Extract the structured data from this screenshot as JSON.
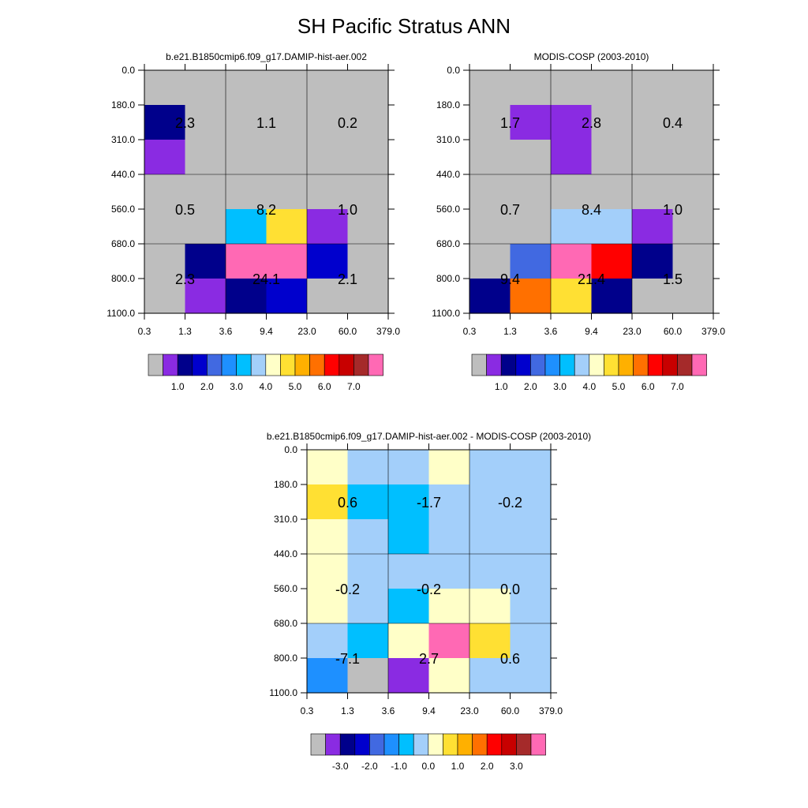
{
  "title": "SH Pacific Stratus ANN",
  "palette": [
    "#bebebe",
    "#8a2be2",
    "#00008b",
    "#0000cd",
    "#4169e1",
    "#1e90ff",
    "#00bfff",
    "#a3cffa",
    "#ffffc8",
    "#ffe033",
    "#ffb000",
    "#ff7000",
    "#ff0000",
    "#c80000",
    "#a52a2a",
    "#ff69b4"
  ],
  "chart_data": [
    {
      "type": "heatmap",
      "title": "b.e21.B1850cmip6.f09_g17.DAMIP-hist-aer.002",
      "x_ticks": [
        "0.3",
        "1.3",
        "3.6",
        "9.4",
        "23.0",
        "60.0",
        "379.0"
      ],
      "y_ticks": [
        "0.0",
        "180.0",
        "310.0",
        "440.0",
        "560.0",
        "680.0",
        "800.0",
        "1100.0"
      ],
      "cells": [
        [
          0,
          0,
          0,
          0,
          0,
          0
        ],
        [
          2,
          0,
          0,
          0,
          0,
          0
        ],
        [
          1,
          0,
          0,
          0,
          0,
          0
        ],
        [
          0,
          0,
          0,
          0,
          0,
          0
        ],
        [
          0,
          0,
          6,
          9,
          1,
          0
        ],
        [
          0,
          2,
          15,
          15,
          3,
          0
        ],
        [
          0,
          1,
          2,
          3,
          0,
          0
        ]
      ],
      "labels": [
        [
          "2.3",
          "1.1",
          "0.2"
        ],
        [
          "0.5",
          "8.2",
          "1.0"
        ],
        [
          "2.3",
          "24.1",
          "2.1"
        ]
      ],
      "colorbar_labels": [
        "1.0",
        "2.0",
        "3.0",
        "4.0",
        "5.0",
        "6.0",
        "7.0"
      ]
    },
    {
      "type": "heatmap",
      "title": "MODIS-COSP (2003-2010)",
      "x_ticks": [
        "0.3",
        "1.3",
        "3.6",
        "9.4",
        "23.0",
        "60.0",
        "379.0"
      ],
      "y_ticks": [
        "0.0",
        "180.0",
        "310.0",
        "440.0",
        "560.0",
        "680.0",
        "800.0",
        "1100.0"
      ],
      "cells": [
        [
          0,
          0,
          0,
          0,
          0,
          0
        ],
        [
          0,
          1,
          1,
          0,
          0,
          0
        ],
        [
          0,
          0,
          1,
          0,
          0,
          0
        ],
        [
          0,
          0,
          0,
          0,
          0,
          0
        ],
        [
          0,
          0,
          7,
          7,
          1,
          0
        ],
        [
          0,
          4,
          15,
          12,
          2,
          0
        ],
        [
          2,
          11,
          9,
          2,
          0,
          0
        ]
      ],
      "labels": [
        [
          "1.7",
          "2.8",
          "0.4"
        ],
        [
          "0.7",
          "8.4",
          "1.0"
        ],
        [
          "9.4",
          "21.4",
          "1.5"
        ]
      ],
      "colorbar_labels": [
        "1.0",
        "2.0",
        "3.0",
        "4.0",
        "5.0",
        "6.0",
        "7.0"
      ]
    },
    {
      "type": "heatmap",
      "title": "b.e21.B1850cmip6.f09_g17.DAMIP-hist-aer.002 - MODIS-COSP (2003-2010)",
      "x_ticks": [
        "0.3",
        "1.3",
        "3.6",
        "9.4",
        "23.0",
        "60.0",
        "379.0"
      ],
      "y_ticks": [
        "0.0",
        "180.0",
        "310.0",
        "440.0",
        "560.0",
        "680.0",
        "800.0",
        "1100.0"
      ],
      "cells": [
        [
          8,
          7,
          7,
          8,
          7,
          7
        ],
        [
          9,
          6,
          6,
          7,
          7,
          7
        ],
        [
          8,
          7,
          6,
          7,
          7,
          7
        ],
        [
          8,
          7,
          7,
          7,
          7,
          7
        ],
        [
          8,
          7,
          6,
          8,
          8,
          7
        ],
        [
          7,
          6,
          8,
          15,
          9,
          7
        ],
        [
          5,
          0,
          1,
          8,
          7,
          7
        ]
      ],
      "labels": [
        [
          "0.6",
          "-1.7",
          "-0.2"
        ],
        [
          "-0.2",
          "-0.2",
          "0.0"
        ],
        [
          "-7.1",
          "2.7",
          "0.6"
        ]
      ],
      "colorbar_labels": [
        "-3.0",
        "-2.0",
        "-1.0",
        "0.0",
        "1.0",
        "2.0",
        "3.0"
      ]
    }
  ]
}
